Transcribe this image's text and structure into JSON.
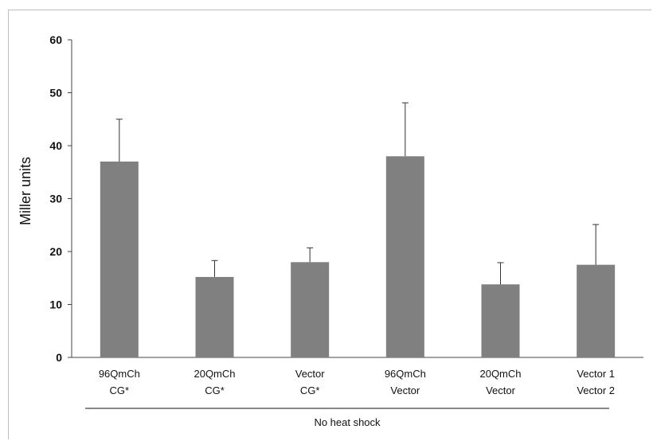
{
  "chart_data": {
    "type": "bar",
    "title": "",
    "xlabel": "",
    "ylabel": "Miller units",
    "ylim": [
      0,
      60
    ],
    "yticks": [
      0,
      10,
      20,
      30,
      40,
      50,
      60
    ],
    "categories": [
      [
        "96QmCh",
        "CG*"
      ],
      [
        "20QmCh",
        "CG*"
      ],
      [
        "Vector",
        "CG*"
      ],
      [
        "96QmCh",
        "Vector"
      ],
      [
        "20QmCh",
        "Vector"
      ],
      [
        "Vector 1",
        "Vector 2"
      ]
    ],
    "values": [
      37,
      15.2,
      18,
      38,
      13.8,
      17.5
    ],
    "error_upper": [
      45,
      18.3,
      20.7,
      48.1,
      17.9,
      25.1
    ],
    "bar_color": "#808080",
    "error_color": "#333333",
    "group_label": "No heat shock",
    "grid": false,
    "legend": "none"
  }
}
